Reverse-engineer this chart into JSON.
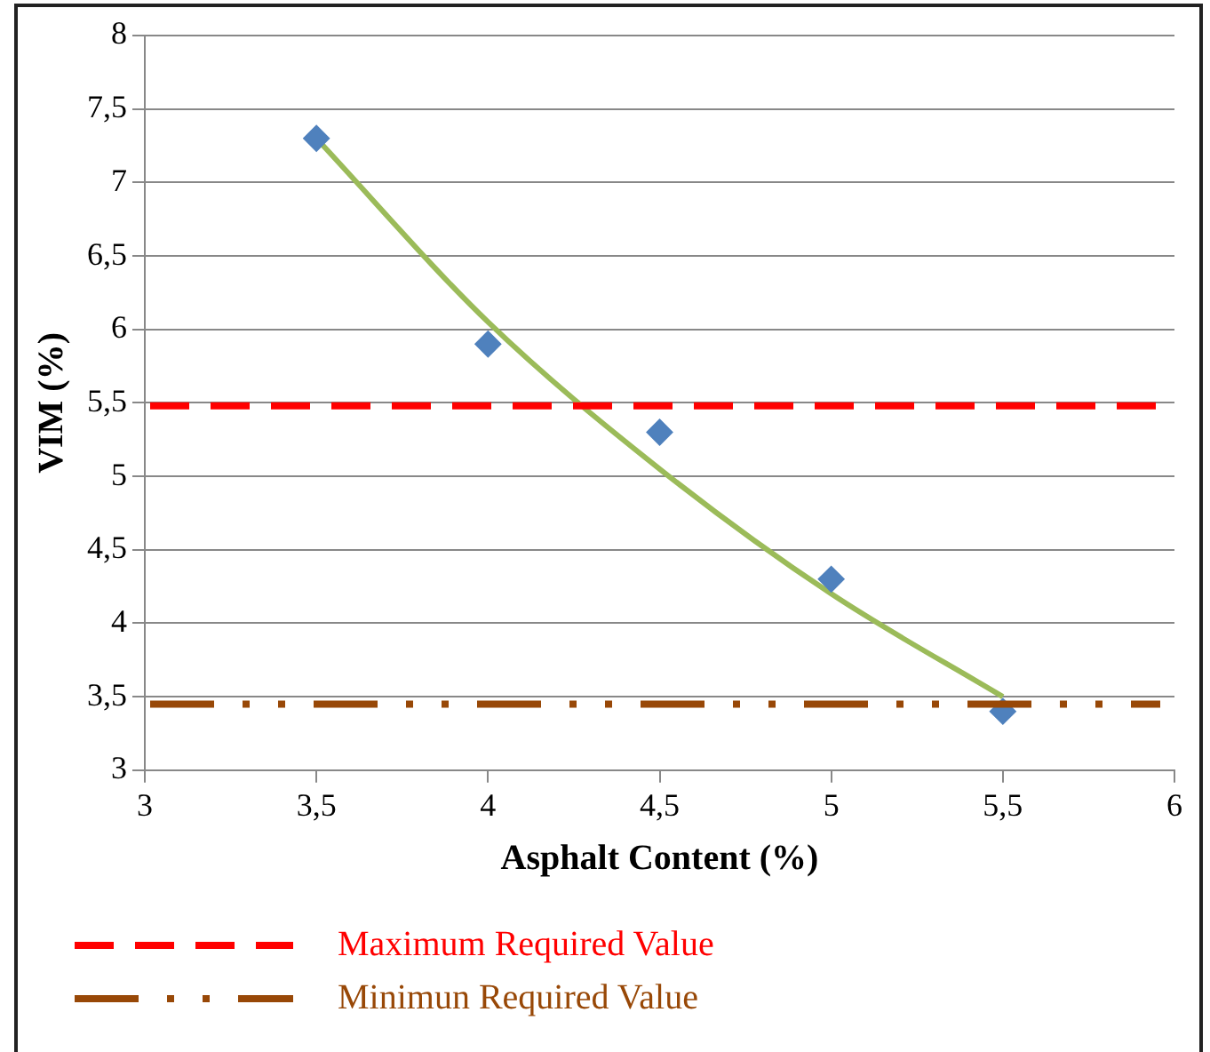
{
  "chart_data": {
    "type": "scatter",
    "xlabel": "Asphalt Content (%)",
    "ylabel": "VIM (%)",
    "x": [
      3.5,
      4,
      4.5,
      5,
      5.5
    ],
    "series": [
      {
        "color": "#4f81bd",
        "values": [
          7.3,
          5.9,
          5.3,
          4.3,
          3.4
        ],
        "marker": "diamond"
      },
      {
        "type": "line",
        "color": "#9bbb59",
        "x": [
          3.5,
          4,
          4.5,
          5,
          5.5
        ],
        "values": [
          7.3,
          6.05,
          5.05,
          4.2,
          3.5
        ],
        "marker": "none"
      }
    ],
    "xlim": [
      3,
      6
    ],
    "xticks": [
      3,
      {
        "value": 3.5,
        "label": "3,5"
      },
      4,
      {
        "value": 4.5,
        "label": "4,5"
      },
      5,
      {
        "value": 5.5,
        "label": "5,5"
      },
      6
    ],
    "ylim": [
      3,
      8
    ],
    "yticks": [
      3,
      {
        "value": 3.5,
        "label": "3,5"
      },
      4,
      {
        "value": 4.5,
        "label": "4,5"
      },
      5,
      {
        "value": 5.5,
        "label": "5,5"
      },
      6,
      {
        "value": 6.5,
        "label": "6,5"
      },
      7,
      {
        "value": 7.5,
        "label": "7,5"
      },
      8
    ],
    "ref_lines": [
      {
        "axis": "y",
        "value": 5.48,
        "label": "Maximum Required Value",
        "color": "#ff0000",
        "line_style": "dashed"
      },
      {
        "axis": "y",
        "value": 3.45,
        "label": "Minimun Required Value",
        "color": "#984807",
        "line_style": "dashdot"
      }
    ],
    "grid": "y"
  }
}
